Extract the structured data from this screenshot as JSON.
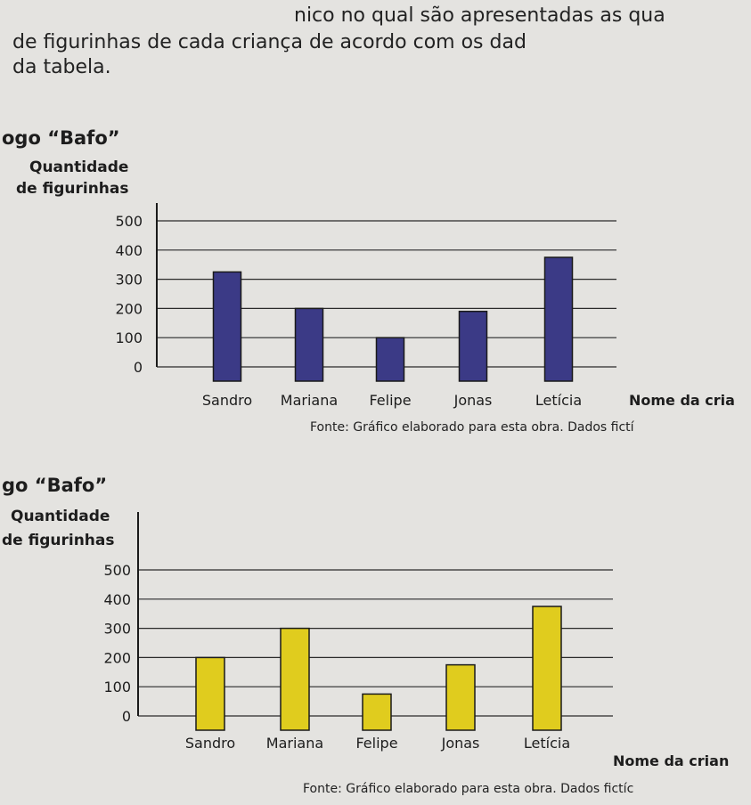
{
  "intro": {
    "line1": "nico no qual são apresentadas as qua",
    "line2": "de figurinhas de cada criança de acordo com os dad",
    "line3": "da tabela."
  },
  "colors": {
    "chart1_bar": "#3b3a86",
    "chart2_bar": "#e0cc1e",
    "bar_outline": "#1a1a1a"
  },
  "chart_data": [
    {
      "type": "bar",
      "title": "ogo “Bafo”",
      "ylabel_line1": "Quantidade",
      "ylabel_line2": "de figurinhas",
      "xlabel": "Nome da cria",
      "categories": [
        "Sandro",
        "Mariana",
        "Felipe",
        "Jonas",
        "Letícia"
      ],
      "values": [
        325,
        200,
        100,
        190,
        375
      ],
      "yticks": [
        0,
        100,
        200,
        300,
        400,
        500
      ],
      "ylim": [
        0,
        500
      ],
      "grid": true,
      "source": "Fonte: Gráfico elaborado para esta obra. Dados fictí"
    },
    {
      "type": "bar",
      "title": "go “Bafo”",
      "ylabel_line1": "Quantidade",
      "ylabel_line2": "de figurinhas",
      "xlabel": "Nome da crian",
      "categories": [
        "Sandro",
        "Mariana",
        "Felipe",
        "Jonas",
        "Letícia"
      ],
      "values": [
        200,
        300,
        75,
        175,
        375
      ],
      "yticks": [
        0,
        100,
        200,
        300,
        400,
        500
      ],
      "ylim": [
        0,
        500
      ],
      "grid": true,
      "source": "Fonte: Gráfico elaborado para esta obra. Dados fictíc"
    }
  ]
}
